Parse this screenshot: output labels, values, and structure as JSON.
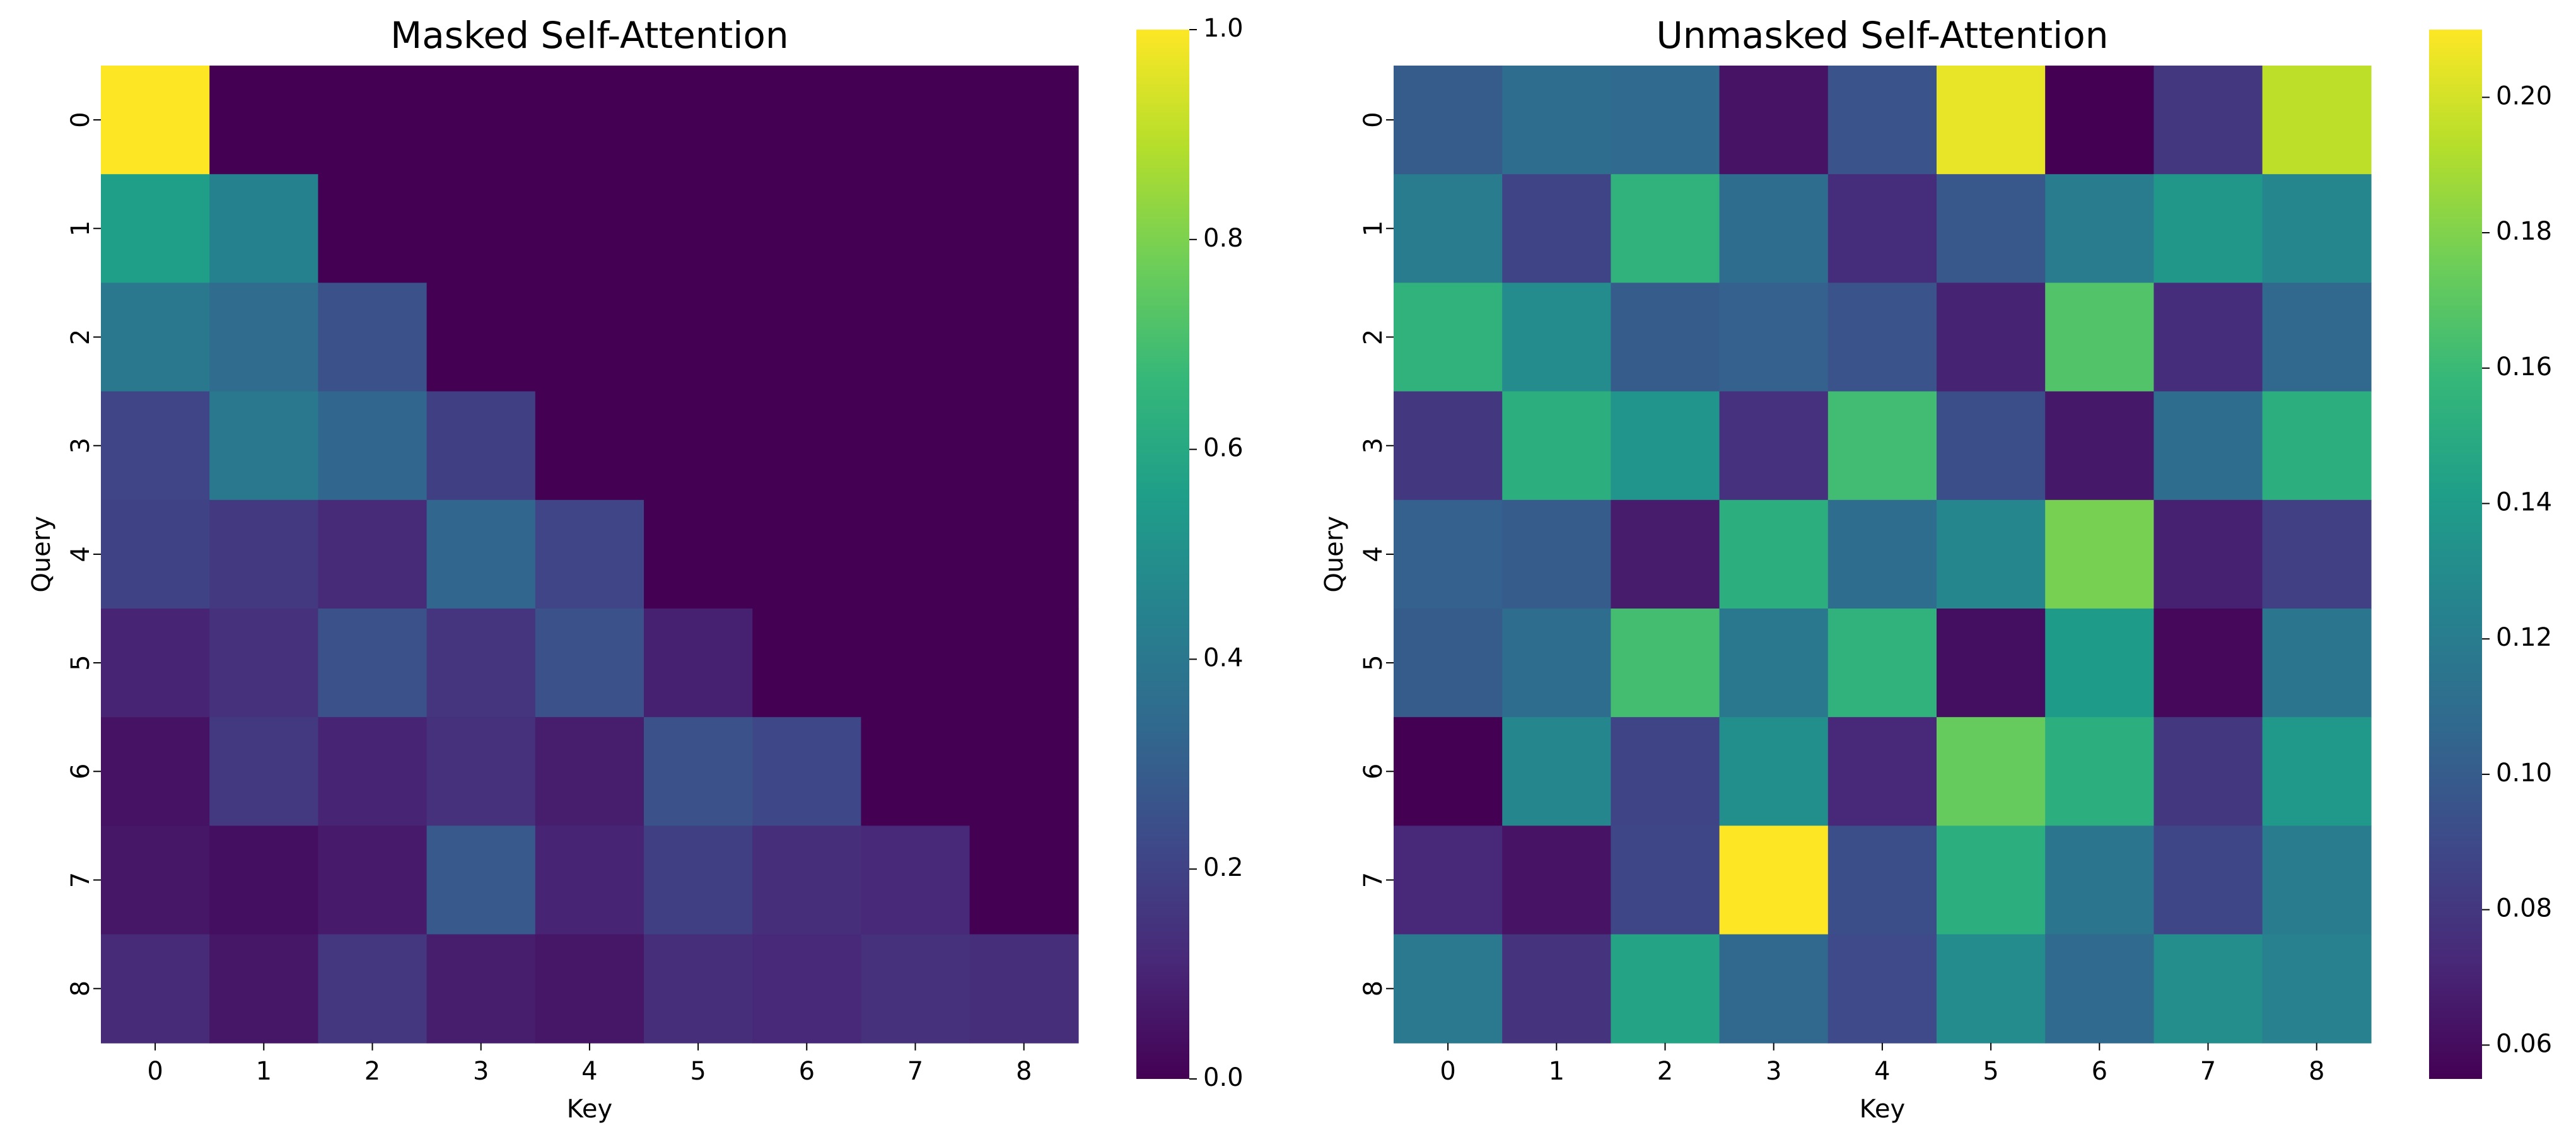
{
  "colormap": "viridis",
  "colormap_stops": [
    "#440154",
    "#482878",
    "#3e4989",
    "#31688e",
    "#26828e",
    "#1f9e89",
    "#35b779",
    "#6ece58",
    "#b5de2b",
    "#fde725"
  ],
  "chart_data": [
    {
      "type": "heatmap",
      "title": "Masked Self-Attention",
      "xlabel": "Key",
      "ylabel": "Query",
      "x_categories": [
        "0",
        "1",
        "2",
        "3",
        "4",
        "5",
        "6",
        "7",
        "8"
      ],
      "y_categories": [
        "0",
        "1",
        "2",
        "3",
        "4",
        "5",
        "6",
        "7",
        "8"
      ],
      "vmin": 0.0,
      "vmax": 1.0,
      "colorbar_ticks": [
        0.0,
        0.2,
        0.4,
        0.6,
        0.8,
        1.0
      ],
      "colorbar_tick_labels": [
        "0.0",
        "0.2",
        "0.4",
        "0.6",
        "0.8",
        "1.0"
      ],
      "values": [
        [
          1.0,
          0.0,
          0.0,
          0.0,
          0.0,
          0.0,
          0.0,
          0.0,
          0.0
        ],
        [
          0.56,
          0.44,
          0.0,
          0.0,
          0.0,
          0.0,
          0.0,
          0.0,
          0.0
        ],
        [
          0.4,
          0.35,
          0.25,
          0.0,
          0.0,
          0.0,
          0.0,
          0.0,
          0.0
        ],
        [
          0.21,
          0.4,
          0.33,
          0.19,
          0.0,
          0.0,
          0.0,
          0.0,
          0.0
        ],
        [
          0.2,
          0.17,
          0.12,
          0.33,
          0.21,
          0.0,
          0.0,
          0.0,
          0.0
        ],
        [
          0.1,
          0.14,
          0.25,
          0.15,
          0.25,
          0.09,
          0.0,
          0.0,
          0.0
        ],
        [
          0.05,
          0.17,
          0.1,
          0.14,
          0.08,
          0.25,
          0.22,
          0.0,
          0.0
        ],
        [
          0.06,
          0.04,
          0.07,
          0.28,
          0.1,
          0.19,
          0.13,
          0.11,
          0.0
        ],
        [
          0.12,
          0.06,
          0.16,
          0.08,
          0.06,
          0.13,
          0.11,
          0.14,
          0.13
        ]
      ]
    },
    {
      "type": "heatmap",
      "title": "Unmasked Self-Attention",
      "xlabel": "Key",
      "ylabel": "Query",
      "x_categories": [
        "0",
        "1",
        "2",
        "3",
        "4",
        "5",
        "6",
        "7",
        "8"
      ],
      "y_categories": [
        "0",
        "1",
        "2",
        "3",
        "4",
        "5",
        "6",
        "7",
        "8"
      ],
      "vmin": 0.055,
      "vmax": 0.21,
      "colorbar_ticks": [
        0.06,
        0.08,
        0.1,
        0.12,
        0.14,
        0.16,
        0.18,
        0.2
      ],
      "colorbar_tick_labels": [
        "0.06",
        "0.08",
        "0.10",
        "0.12",
        "0.14",
        "0.16",
        "0.18",
        "0.20"
      ],
      "values": [
        [
          0.1,
          0.11,
          0.108,
          0.063,
          0.095,
          0.205,
          0.055,
          0.08,
          0.195
        ],
        [
          0.12,
          0.087,
          0.155,
          0.11,
          0.075,
          0.097,
          0.12,
          0.137,
          0.127
        ],
        [
          0.155,
          0.13,
          0.1,
          0.103,
          0.095,
          0.07,
          0.167,
          0.075,
          0.107
        ],
        [
          0.08,
          0.152,
          0.135,
          0.077,
          0.162,
          0.092,
          0.065,
          0.11,
          0.152
        ],
        [
          0.103,
          0.1,
          0.067,
          0.152,
          0.11,
          0.127,
          0.178,
          0.069,
          0.085
        ],
        [
          0.1,
          0.11,
          0.163,
          0.117,
          0.155,
          0.061,
          0.14,
          0.058,
          0.115
        ],
        [
          0.055,
          0.127,
          0.087,
          0.132,
          0.073,
          0.173,
          0.152,
          0.08,
          0.138
        ],
        [
          0.073,
          0.063,
          0.088,
          0.21,
          0.092,
          0.152,
          0.115,
          0.088,
          0.12
        ],
        [
          0.118,
          0.078,
          0.145,
          0.107,
          0.09,
          0.13,
          0.108,
          0.131,
          0.123
        ]
      ]
    }
  ]
}
